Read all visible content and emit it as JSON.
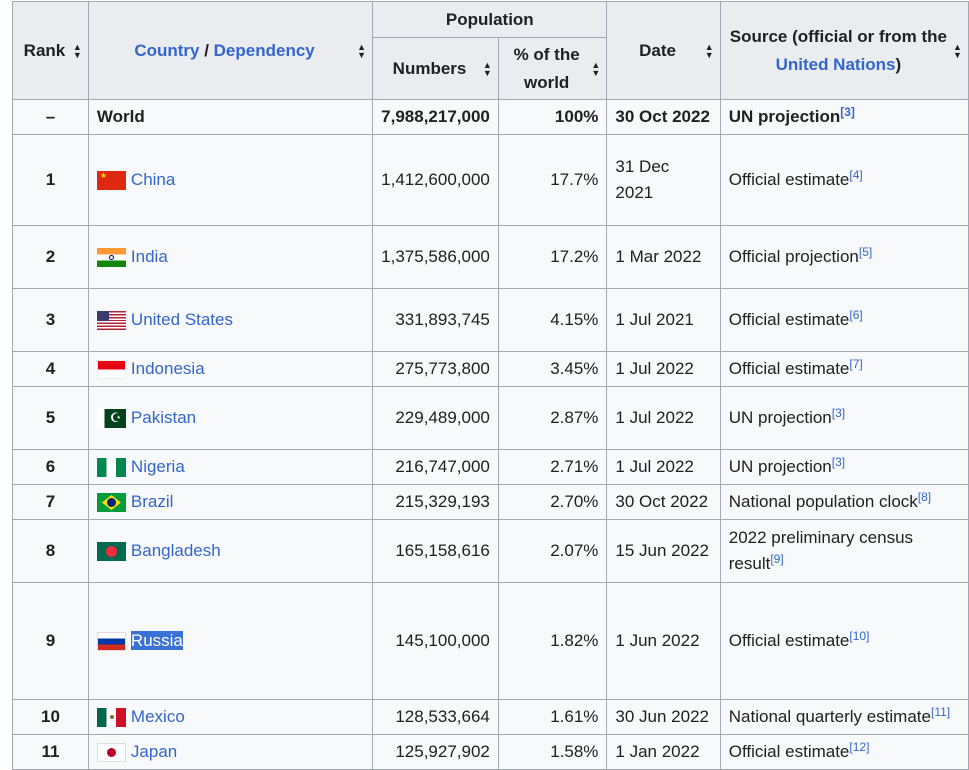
{
  "headers": {
    "rank": "Rank",
    "country_link1": "Country",
    "country_sep": " / ",
    "country_link2": "Dependency",
    "population": "Population",
    "numbers": "Numbers",
    "percent": "% of the world",
    "date": "Date",
    "source_pre": "Source (official or from the ",
    "source_link": "United Nations",
    "source_post": ")"
  },
  "world_row": {
    "rank": "–",
    "name": "World",
    "number": "7,988,217,000",
    "percent": "100%",
    "date": "30 Oct 2022",
    "source": "UN projection",
    "ref": "[3]"
  },
  "rows": [
    {
      "rank": "1",
      "flag": "china-flag-icon",
      "name": "China",
      "number": "1,412,600,000",
      "percent": "17.7%",
      "date": "31 Dec 2021",
      "source": "Official estimate",
      "ref": "[4]"
    },
    {
      "rank": "2",
      "flag": "india-flag-icon",
      "name": "India",
      "number": "1,375,586,000",
      "percent": "17.2%",
      "date": "1 Mar 2022",
      "source": "Official projection",
      "ref": "[5]"
    },
    {
      "rank": "3",
      "flag": "united-states-flag-icon",
      "name": "United States",
      "number": "331,893,745",
      "percent": "4.15%",
      "date": "1 Jul 2021",
      "source": "Official estimate",
      "ref": "[6]"
    },
    {
      "rank": "4",
      "flag": "indonesia-flag-icon",
      "name": "Indonesia",
      "number": "275,773,800",
      "percent": "3.45%",
      "date": "1 Jul 2022",
      "source": "Official estimate",
      "ref": "[7]"
    },
    {
      "rank": "5",
      "flag": "pakistan-flag-icon",
      "name": "Pakistan",
      "number": "229,489,000",
      "percent": "2.87%",
      "date": "1 Jul 2022",
      "source": "UN projection",
      "ref": "[3]"
    },
    {
      "rank": "6",
      "flag": "nigeria-flag-icon",
      "name": "Nigeria",
      "number": "216,747,000",
      "percent": "2.71%",
      "date": "1 Jul 2022",
      "source": "UN projection",
      "ref": "[3]"
    },
    {
      "rank": "7",
      "flag": "brazil-flag-icon",
      "name": "Brazil",
      "number": "215,329,193",
      "percent": "2.70%",
      "date": "30 Oct 2022",
      "source": "National population clock",
      "ref": "[8]"
    },
    {
      "rank": "8",
      "flag": "bangladesh-flag-icon",
      "name": "Bangladesh",
      "number": "165,158,616",
      "percent": "2.07%",
      "date": "15 Jun 2022",
      "source": "2022 preliminary census result",
      "ref": "[9]"
    },
    {
      "rank": "9",
      "flag": "russia-flag-icon",
      "name": "Russia",
      "number": "145,100,000",
      "percent": "1.82%",
      "date": "1 Jun 2022",
      "source": "Official estimate",
      "ref": "[10]"
    },
    {
      "rank": "10",
      "flag": "mexico-flag-icon",
      "name": "Mexico",
      "number": "128,533,664",
      "percent": "1.61%",
      "date": "30 Jun 2022",
      "source": "National quarterly estimate",
      "ref": "[11]"
    },
    {
      "rank": "11",
      "flag": "japan-flag-icon",
      "name": "Japan",
      "number": "125,927,902",
      "percent": "1.58%",
      "date": "1 Jan 2022",
      "source": "Official estimate",
      "ref": "[12]"
    }
  ],
  "selection": {
    "selected_text": "Russia"
  },
  "colors": {
    "link": "#3366cc",
    "header_bg": "#eaecf0",
    "cell_bg": "#f8f9fa",
    "border": "#a2a9b1",
    "selection": "#3a71d6"
  }
}
